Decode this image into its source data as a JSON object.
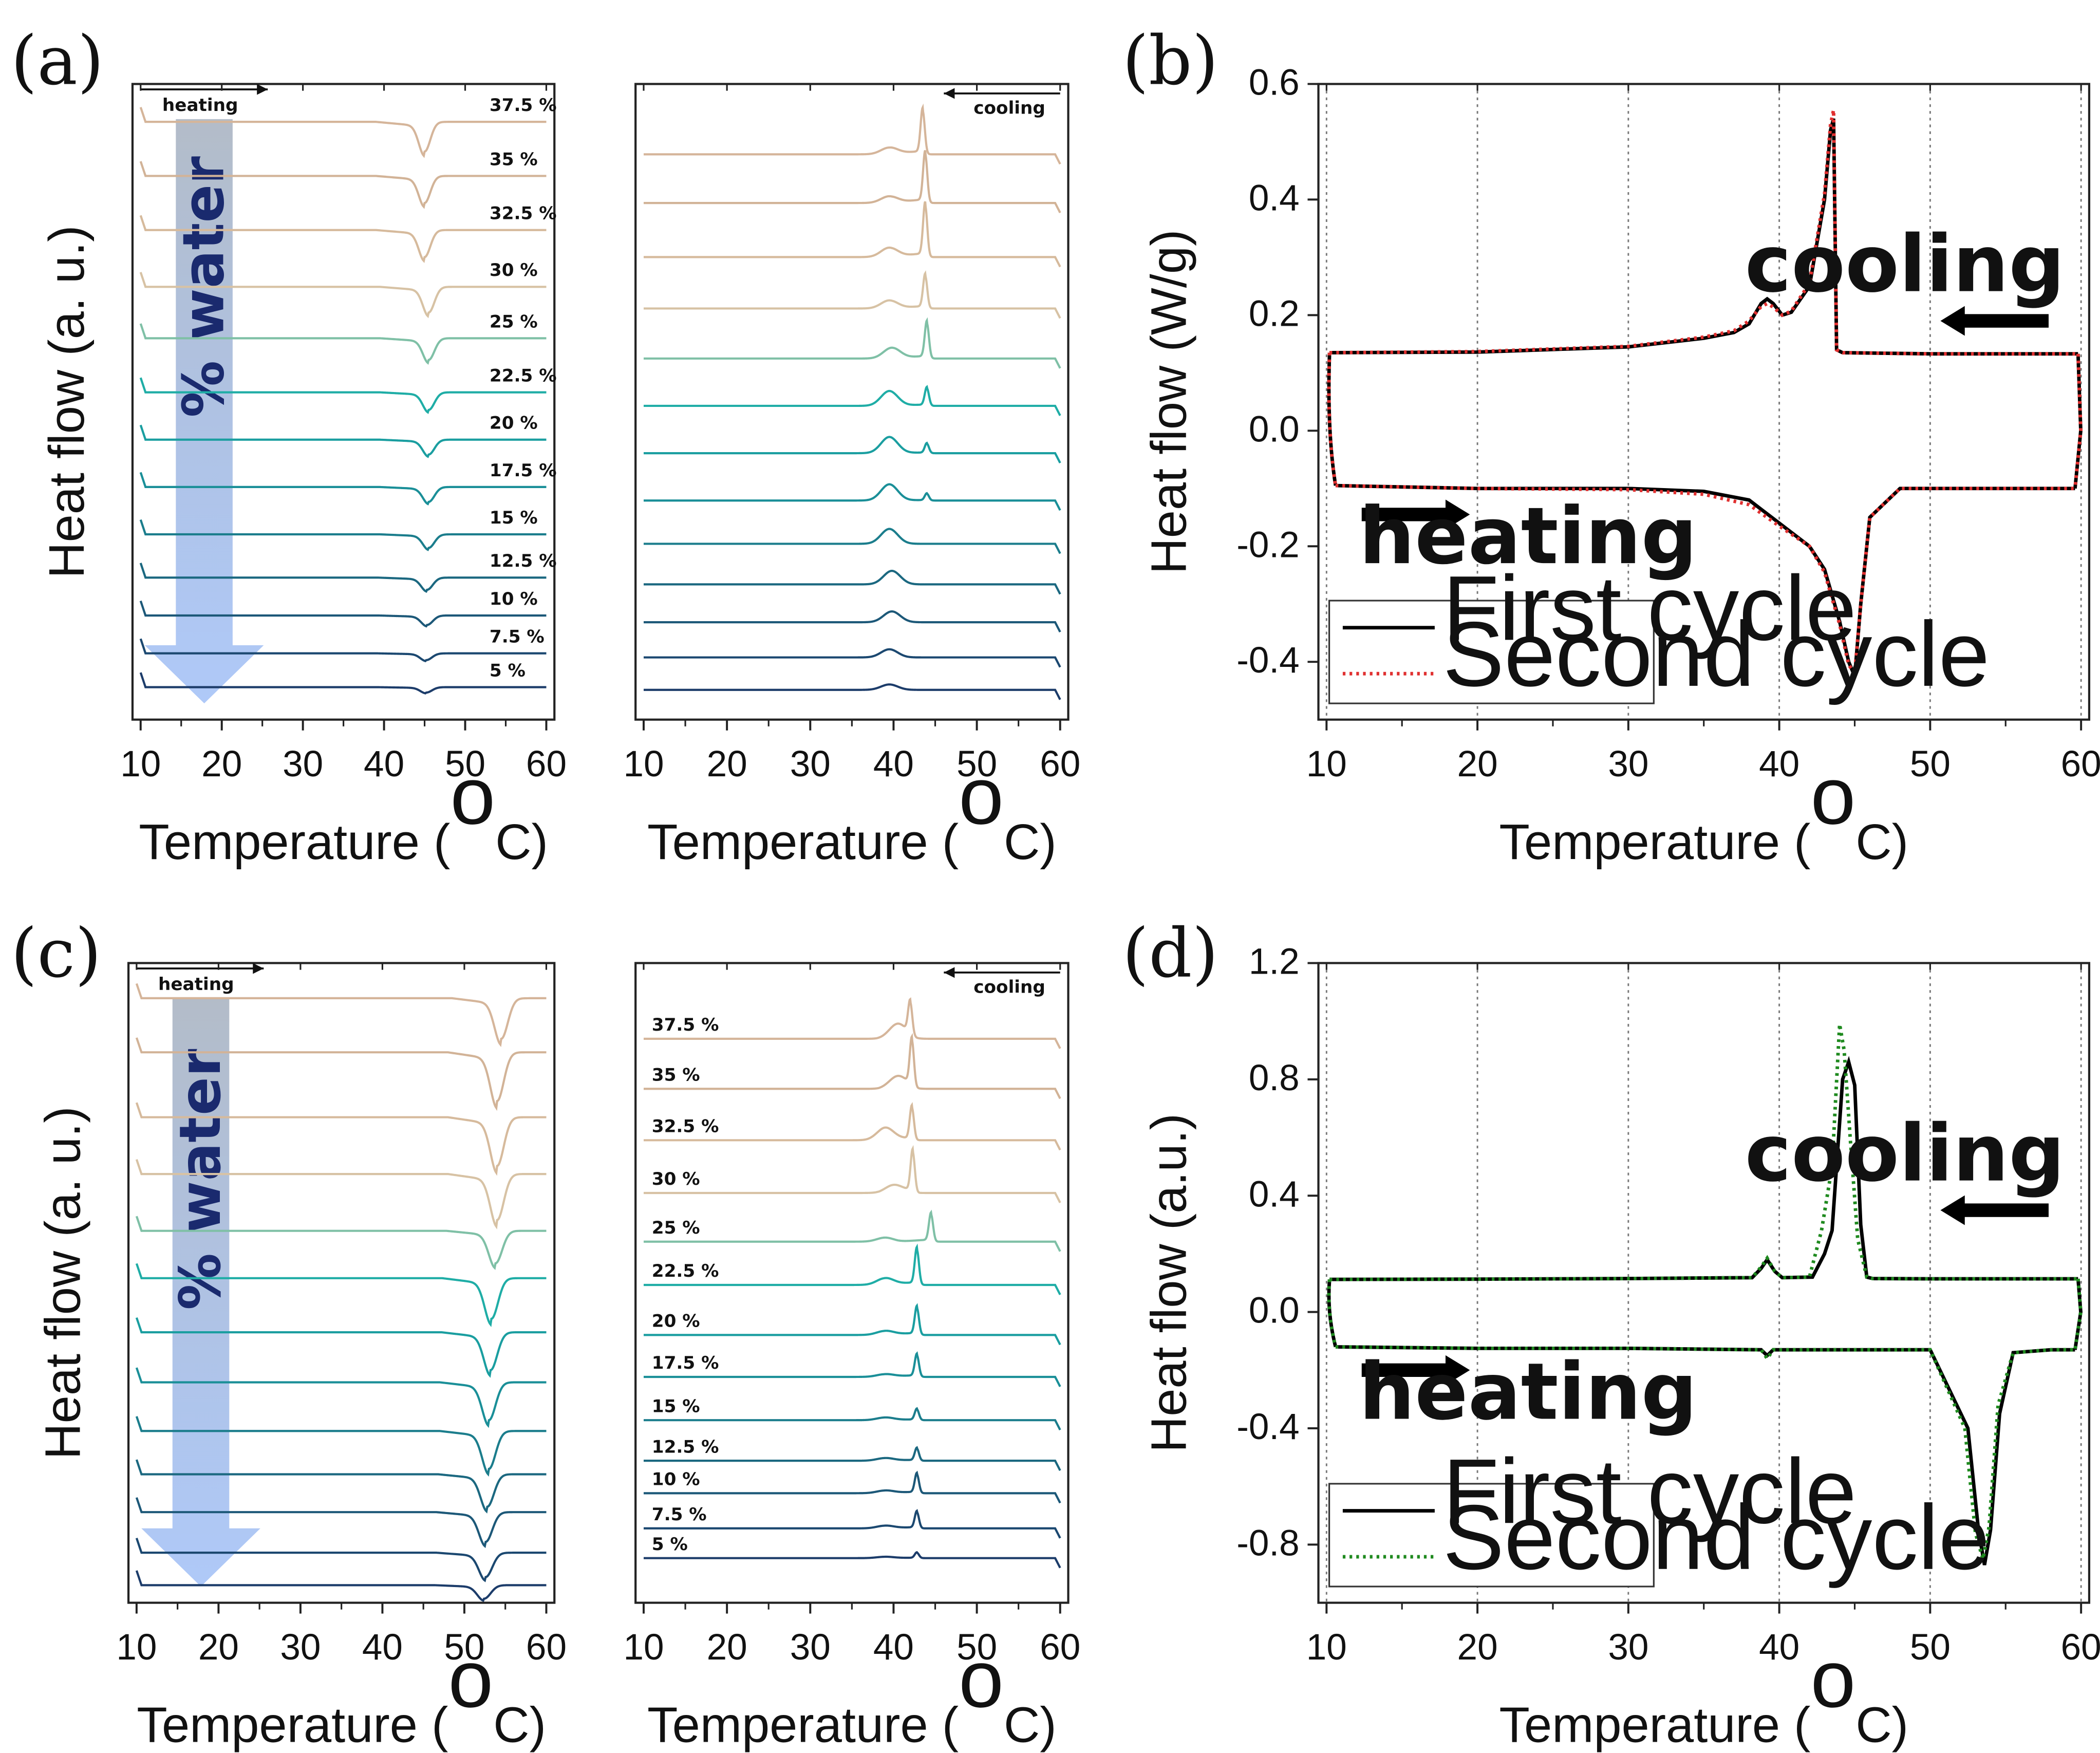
{
  "figure": {
    "panel_labels": [
      "(a)",
      "(b)",
      "(c)",
      "(d)"
    ],
    "x_axis_title": "Temperature (",
    "x_axis_unit_sup": "o",
    "x_axis_unit_rest": "C)",
    "x_ticks": [
      "10",
      "20",
      "30",
      "40",
      "50",
      "60"
    ]
  },
  "chart_data": [
    {
      "panel": "a-heating",
      "type": "line",
      "ylabel": "Heat flow (a. u.)",
      "direction_label": "heating",
      "water_label": "% water",
      "xlim": [
        10,
        60
      ],
      "curve_labels": [
        "37.5 %",
        "35 %",
        "32.5 %",
        "30 %",
        "25 %",
        "22.5 %",
        "20 %",
        "17.5 %",
        "15 %",
        "12.5 %",
        "10 %",
        "7.5 %",
        "5 %"
      ],
      "colors": [
        "#d5b59a",
        "#d2b397",
        "#d6ba9c",
        "#d7c2a4",
        "#7fc0a6",
        "#1fada6",
        "#1a9ea0",
        "#1a8f98",
        "#1b7d8c",
        "#1b6880",
        "#1c5878",
        "#1b4870",
        "#1c3c6a"
      ],
      "baselines": [
        90,
        130,
        170,
        212,
        250,
        290,
        325,
        360,
        395,
        427,
        455,
        483,
        508
      ],
      "peak_x": [
        45.0,
        45.0,
        45.0,
        45.5,
        45.5,
        45.5,
        45.5,
        45.5,
        45.5,
        45.3,
        45.3,
        45.2,
        45.2
      ],
      "peak_depth": [
        22,
        20,
        20,
        19,
        16,
        13,
        11,
        11,
        10,
        9,
        7,
        5,
        4
      ]
    },
    {
      "panel": "a-cooling",
      "type": "line",
      "direction_label": "cooling",
      "xlim": [
        10,
        60
      ],
      "colors": [
        "#d5b59a",
        "#d2b397",
        "#d6ba9c",
        "#d7c2a4",
        "#7fc0a6",
        "#1fada6",
        "#1a9ea0",
        "#1a8f98",
        "#1b7d8c",
        "#1b6880",
        "#1c5878",
        "#1b4870",
        "#1c3c6a"
      ],
      "baselines": [
        114,
        150,
        190,
        228,
        265,
        300,
        335,
        370,
        402,
        432,
        460,
        486,
        510
      ],
      "sharp_peak_x": [
        43.5,
        43.8,
        43.8,
        43.8,
        44.0,
        44.0,
        44.0,
        44.0,
        0,
        0,
        0,
        0,
        0
      ],
      "sharp_peak_height": [
        32,
        36,
        38,
        24,
        26,
        13,
        7,
        5,
        0,
        0,
        0,
        0,
        0
      ],
      "broad_peak_x": [
        39.5,
        39.5,
        39.5,
        39.5,
        39.8,
        39.5,
        39.5,
        39.5,
        39.5,
        39.8,
        39.8,
        39.5,
        39.5
      ],
      "broad_peak_height": [
        5,
        5,
        7,
        6,
        8,
        11,
        12,
        12,
        11,
        10,
        8,
        6,
        4
      ]
    },
    {
      "panel": "b",
      "type": "line",
      "ylabel": "Heat flow (W/g)",
      "xlim": [
        10,
        60
      ],
      "ylim": [
        -0.5,
        0.6
      ],
      "y_ticks": [
        "-0.4",
        "-0.2",
        "0.0",
        "0.2",
        "0.4",
        "0.6"
      ],
      "y_tick_values": [
        -0.4,
        -0.2,
        0.0,
        0.2,
        0.4,
        0.6
      ],
      "cooling_label": "cooling",
      "heating_label": "heating",
      "grid": "vertical dotted",
      "legend": "bottom-left",
      "series": [
        {
          "name": "First cycle",
          "color": "#000000",
          "style": "solid",
          "cooling": {
            "x": [
              10.2,
              20,
              30,
              35,
              37,
              38,
              38.8,
              39.2,
              39.6,
              40.2,
              40.8,
              42.0,
              43.0,
              43.4,
              43.6,
              43.8,
              44.2,
              50,
              59.8
            ],
            "y": [
              0.135,
              0.136,
              0.145,
              0.16,
              0.17,
              0.185,
              0.22,
              0.228,
              0.22,
              0.2,
              0.205,
              0.25,
              0.4,
              0.52,
              0.54,
              0.14,
              0.135,
              0.133,
              0.133
            ]
          },
          "heating": {
            "x": [
              10.6,
              20,
              30,
              35,
              38,
              40,
              42,
              43,
              44,
              44.6,
              45.0,
              45.4,
              46,
              48,
              59.6
            ],
            "y": [
              -0.095,
              -0.1,
              -0.1,
              -0.105,
              -0.12,
              -0.16,
              -0.2,
              -0.24,
              -0.33,
              -0.4,
              -0.425,
              -0.3,
              -0.15,
              -0.1,
              -0.1
            ]
          }
        },
        {
          "name": "Second cycle",
          "color": "#e03030",
          "style": "dotted",
          "cooling": {
            "x": [
              10.2,
              20,
              30,
              35,
              37,
              38,
              38.8,
              39.2,
              39.6,
              40.2,
              40.8,
              42.0,
              43.0,
              43.4,
              43.6,
              43.8,
              44.2,
              50,
              59.8
            ],
            "y": [
              0.135,
              0.137,
              0.146,
              0.162,
              0.173,
              0.19,
              0.215,
              0.22,
              0.214,
              0.2,
              0.207,
              0.255,
              0.41,
              0.53,
              0.555,
              0.14,
              0.135,
              0.133,
              0.133
            ]
          },
          "heating": {
            "x": [
              10.6,
              20,
              30,
              35,
              38,
              40,
              42,
              43,
              44,
              44.6,
              45.0,
              45.4,
              46,
              48,
              59.6
            ],
            "y": [
              -0.095,
              -0.1,
              -0.102,
              -0.11,
              -0.128,
              -0.165,
              -0.2,
              -0.245,
              -0.335,
              -0.405,
              -0.42,
              -0.3,
              -0.15,
              -0.1,
              -0.1
            ]
          }
        }
      ]
    },
    {
      "panel": "c-heating",
      "type": "line",
      "ylabel": "Heat flow (a. u.)",
      "direction_label": "heating",
      "water_label": "% water",
      "xlim": [
        10,
        60
      ],
      "colors": [
        "#d5b59a",
        "#d2b397",
        "#d6ba9c",
        "#d7c2a4",
        "#7fc0a6",
        "#1fada6",
        "#1a9ea0",
        "#1a8f98",
        "#1b7d8c",
        "#1b6880",
        "#1c5878",
        "#1b4870",
        "#1c3c6a"
      ],
      "baselines": [
        738,
        778,
        826,
        868,
        910,
        945,
        985,
        1022,
        1058,
        1090,
        1118,
        1148,
        1172
      ],
      "peak_x": [
        54.5,
        54.0,
        54.0,
        54.0,
        53.8,
        53.3,
        53.2,
        53.0,
        53.0,
        52.8,
        52.6,
        52.6,
        52.4
      ],
      "peak_depth": [
        30,
        36,
        36,
        34,
        24,
        30,
        28,
        28,
        28,
        24,
        22,
        18,
        10
      ]
    },
    {
      "panel": "c-cooling",
      "type": "line",
      "direction_label": "cooling",
      "xlim": [
        10,
        60
      ],
      "curve_labels": [
        "37.5 %",
        "35 %",
        "32.5 %",
        "30 %",
        "25 %",
        "22.5 %",
        "20 %",
        "17.5 %",
        "15 %",
        "12.5 %",
        "10 %",
        "7.5 %",
        "5 %"
      ],
      "colors": [
        "#d5b59a",
        "#d2b397",
        "#d6ba9c",
        "#d7c2a4",
        "#7fc0a6",
        "#1fada6",
        "#1a9ea0",
        "#1a8f98",
        "#1b7d8c",
        "#1b6880",
        "#1c5878",
        "#1b4870",
        "#1c3c6a"
      ],
      "baselines": [
        768,
        805,
        843,
        882,
        918,
        950,
        987,
        1018,
        1050,
        1080,
        1104,
        1130,
        1152
      ],
      "sharp_peak_x": [
        42.0,
        42.2,
        42.2,
        42.3,
        44.5,
        42.8,
        42.8,
        42.8,
        42.8,
        42.8,
        42.8,
        42.8,
        42.8
      ],
      "sharp_peak_height": [
        24,
        34,
        24,
        30,
        20,
        26,
        20,
        16,
        8,
        9,
        14,
        12,
        4
      ],
      "broad_peak_x": [
        40.5,
        40.5,
        39.0,
        40.0,
        39.0,
        39.0,
        39.0,
        39.0,
        39.0,
        39.0,
        39.0,
        39.0,
        39.0
      ],
      "broad_peak_height": [
        10,
        8,
        9,
        5,
        3,
        5,
        3,
        2,
        2,
        2,
        2,
        2,
        1
      ]
    },
    {
      "panel": "d",
      "type": "line",
      "ylabel": "Heat flow (a.u.)",
      "xlim": [
        10,
        60
      ],
      "ylim": [
        -1.0,
        1.2
      ],
      "y_ticks": [
        "-0.8",
        "-0.4",
        "0.0",
        "0.4",
        "0.8",
        "1.2"
      ],
      "y_tick_values": [
        -0.8,
        -0.4,
        0.0,
        0.4,
        0.8,
        1.2
      ],
      "cooling_label": "cooling",
      "heating_label": "heating",
      "grid": "vertical dotted",
      "legend": "bottom-left",
      "series": [
        {
          "name": "First cycle",
          "color": "#000000",
          "style": "solid",
          "cooling": {
            "x": [
              10.2,
              20,
              30,
              38.2,
              38.8,
              39.2,
              39.7,
              40.2,
              42.2,
              43.0,
              43.5,
              44.2,
              44.6,
              45.0,
              45.4,
              45.8,
              46.2,
              50,
              59.8
            ],
            "y": [
              0.112,
              0.113,
              0.115,
              0.118,
              0.15,
              0.18,
              0.14,
              0.118,
              0.12,
              0.2,
              0.28,
              0.8,
              0.86,
              0.78,
              0.3,
              0.12,
              0.115,
              0.114,
              0.114
            ]
          },
          "heating": {
            "x": [
              10.6,
              20,
              30,
              38.8,
              39.2,
              39.6,
              45,
              50,
              52.5,
              53.2,
              53.6,
              54.0,
              54.6,
              55.5,
              58,
              59.6
            ],
            "y": [
              -0.12,
              -0.125,
              -0.125,
              -0.13,
              -0.15,
              -0.13,
              -0.13,
              -0.13,
              -0.4,
              -0.75,
              -0.87,
              -0.75,
              -0.35,
              -0.14,
              -0.13,
              -0.13
            ]
          }
        },
        {
          "name": "Second cycle",
          "color": "#1f8a1f",
          "style": "dotted",
          "cooling": {
            "x": [
              10.2,
              20,
              30,
              38.2,
              38.8,
              39.2,
              39.7,
              40.2,
              42.0,
              42.8,
              43.5,
              44.0,
              44.3,
              44.7,
              45.2,
              45.8,
              46.2,
              50,
              59.8
            ],
            "y": [
              0.112,
              0.113,
              0.115,
              0.118,
              0.155,
              0.185,
              0.14,
              0.118,
              0.12,
              0.28,
              0.5,
              0.99,
              0.9,
              0.6,
              0.25,
              0.12,
              0.115,
              0.114,
              0.114
            ]
          },
          "heating": {
            "x": [
              10.6,
              20,
              30,
              38.8,
              39.2,
              39.6,
              45,
              50,
              52.3,
              53.0,
              53.5,
              53.9,
              54.5,
              55.5,
              58,
              59.6
            ],
            "y": [
              -0.12,
              -0.125,
              -0.125,
              -0.13,
              -0.16,
              -0.13,
              -0.13,
              -0.13,
              -0.4,
              -0.76,
              -0.85,
              -0.74,
              -0.32,
              -0.14,
              -0.13,
              -0.13
            ]
          }
        }
      ]
    }
  ]
}
